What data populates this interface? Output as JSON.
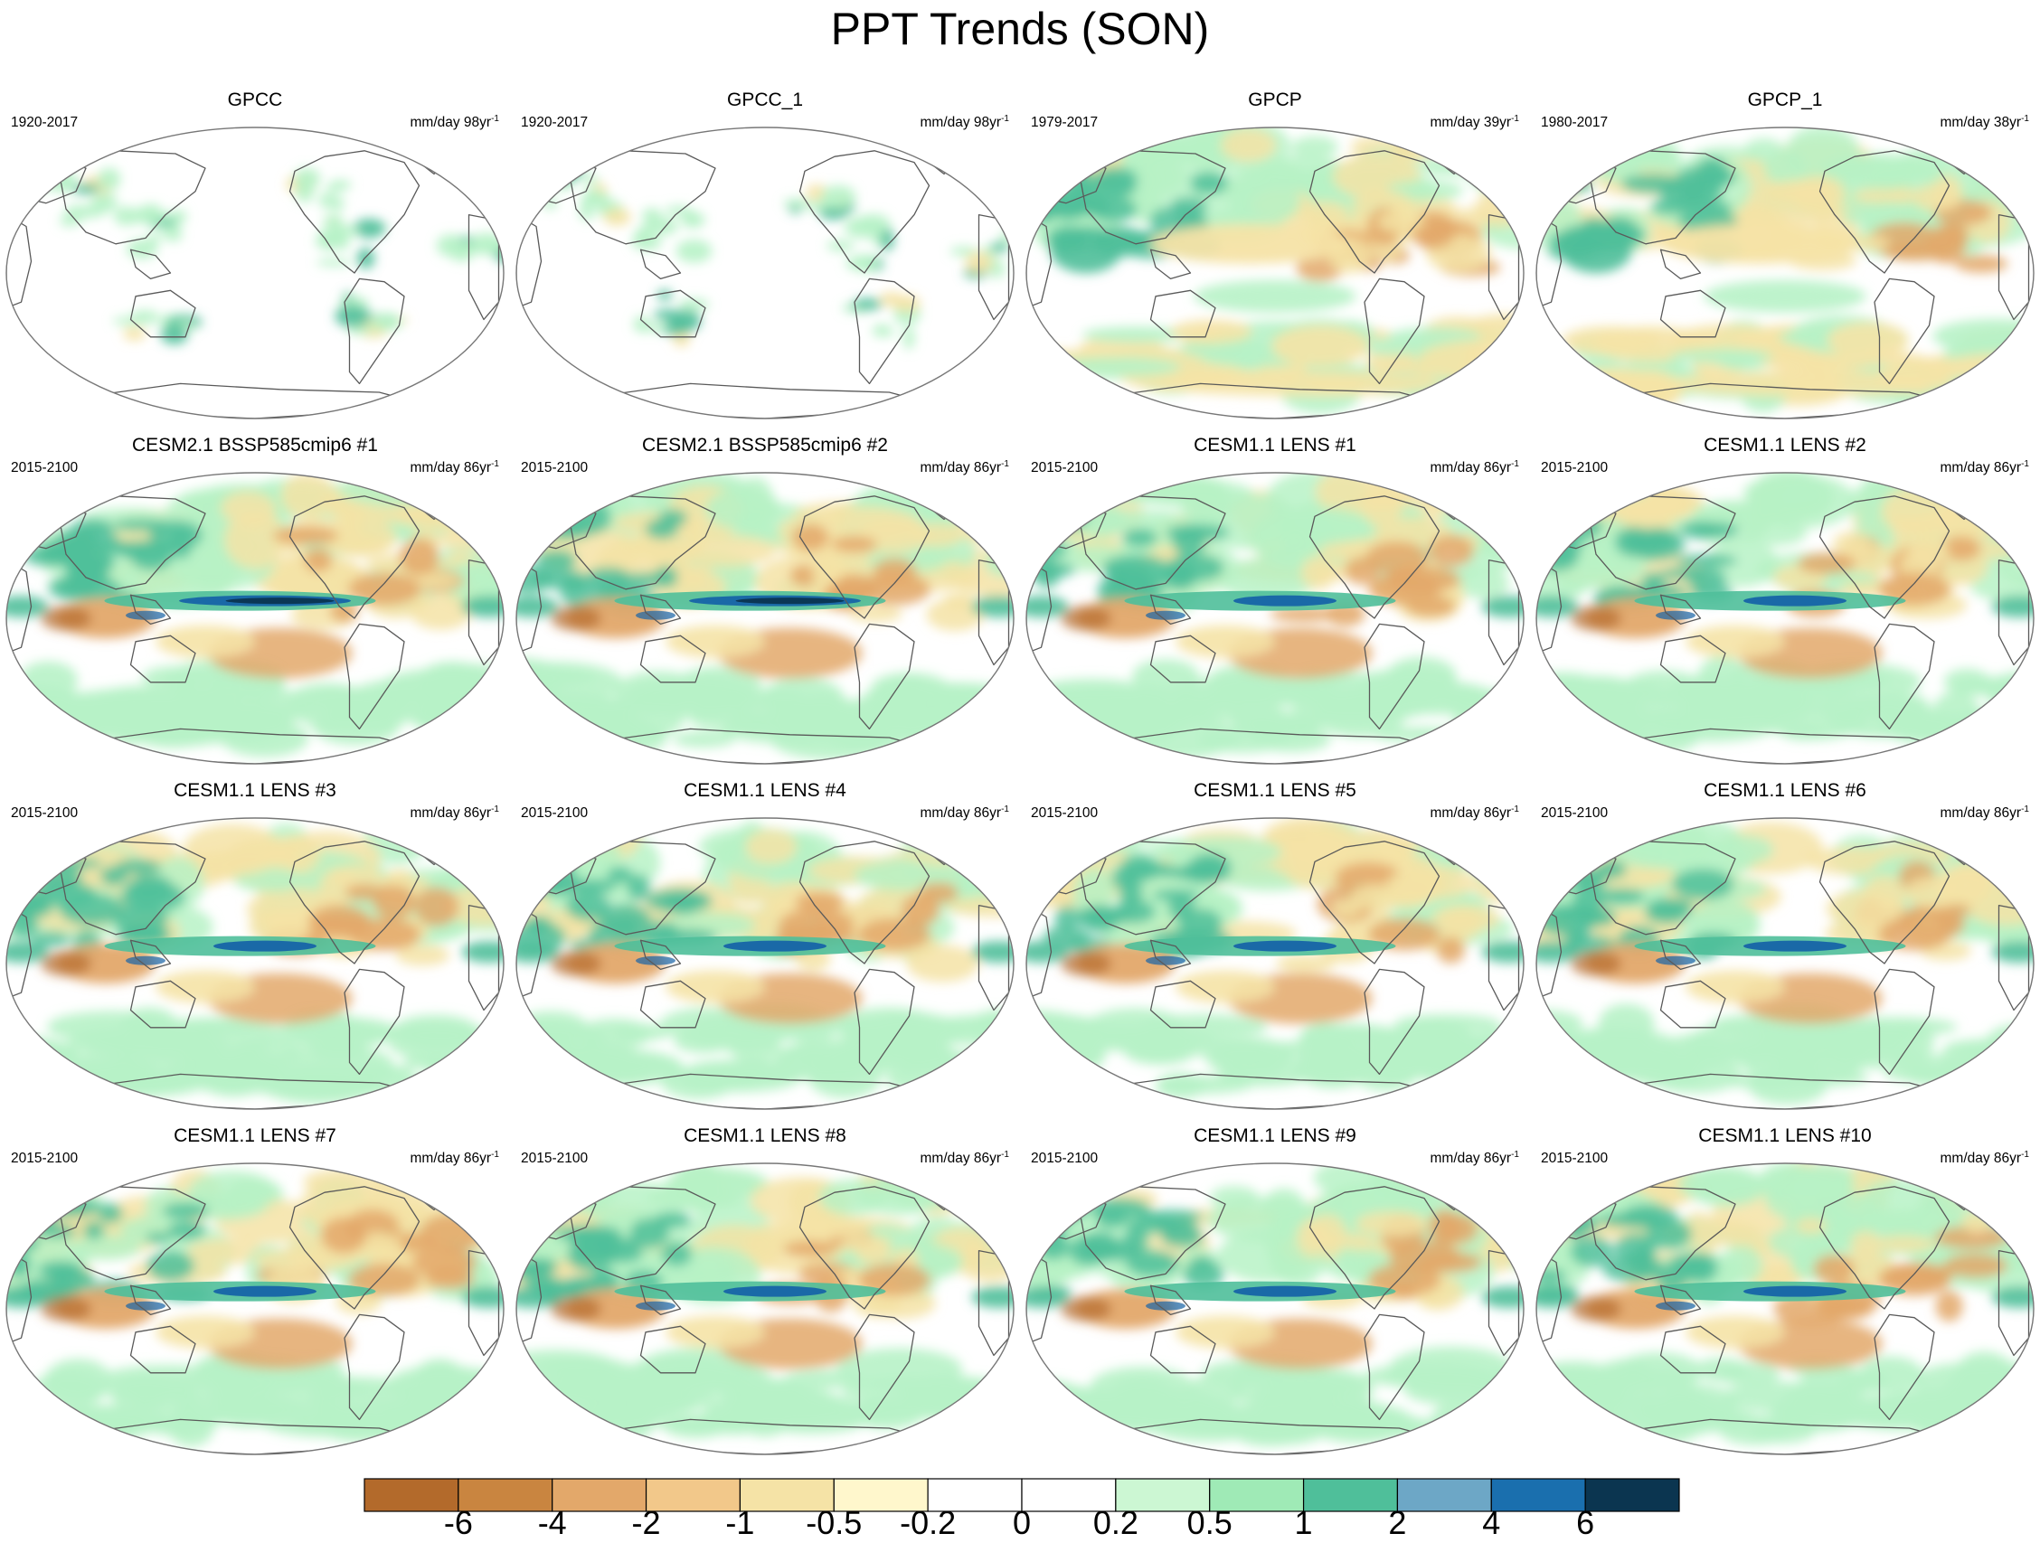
{
  "title": "PPT Trends (SON)",
  "colors": {
    "land_outline": "#5a5a5a",
    "ocean": "#ffffff",
    "dry_strong": "#b36a2b",
    "dry_mid": "#e3a86a",
    "dry_weak": "#f5e3a6",
    "wet_weak": "#b7f2c6",
    "wet_mid": "#4fbf9a",
    "wet_strong": "#1764a8",
    "wet_extreme": "#0b3550"
  },
  "panels": [
    {
      "title": "GPCC",
      "years": "1920-2017",
      "units": "mm/day 98yr",
      "exponent": "-1"
    },
    {
      "title": "GPCC_1",
      "years": "1920-2017",
      "units": "mm/day 98yr",
      "exponent": "-1"
    },
    {
      "title": "GPCP",
      "years": "1979-2017",
      "units": "mm/day 39yr",
      "exponent": "-1"
    },
    {
      "title": "GPCP_1",
      "years": "1980-2017",
      "units": "mm/day 38yr",
      "exponent": "-1"
    },
    {
      "title": "CESM2.1 BSSP585cmip6 #1",
      "years": "2015-2100",
      "units": "mm/day 86yr",
      "exponent": "-1"
    },
    {
      "title": "CESM2.1 BSSP585cmip6 #2",
      "years": "2015-2100",
      "units": "mm/day 86yr",
      "exponent": "-1"
    },
    {
      "title": "CESM1.1 LENS #1",
      "years": "2015-2100",
      "units": "mm/day 86yr",
      "exponent": "-1"
    },
    {
      "title": "CESM1.1 LENS #2",
      "years": "2015-2100",
      "units": "mm/day 86yr",
      "exponent": "-1"
    },
    {
      "title": "CESM1.1 LENS #3",
      "years": "2015-2100",
      "units": "mm/day 86yr",
      "exponent": "-1"
    },
    {
      "title": "CESM1.1 LENS #4",
      "years": "2015-2100",
      "units": "mm/day 86yr",
      "exponent": "-1"
    },
    {
      "title": "CESM1.1 LENS #5",
      "years": "2015-2100",
      "units": "mm/day 86yr",
      "exponent": "-1"
    },
    {
      "title": "CESM1.1 LENS #6",
      "years": "2015-2100",
      "units": "mm/day 86yr",
      "exponent": "-1"
    },
    {
      "title": "CESM1.1 LENS #7",
      "years": "2015-2100",
      "units": "mm/day 86yr",
      "exponent": "-1"
    },
    {
      "title": "CESM1.1 LENS #8",
      "years": "2015-2100",
      "units": "mm/day 86yr",
      "exponent": "-1"
    },
    {
      "title": "CESM1.1 LENS #9",
      "years": "2015-2100",
      "units": "mm/day 86yr",
      "exponent": "-1"
    },
    {
      "title": "CESM1.1 LENS #10",
      "years": "2015-2100",
      "units": "mm/day 86yr",
      "exponent": "-1"
    }
  ],
  "colorbar": {
    "colors": [
      "#b36a2b",
      "#c98540",
      "#e3a86a",
      "#f2c88a",
      "#f5e3a6",
      "#fff7cc",
      "#ffffff",
      "#ffffff",
      "#ccf7d3",
      "#9feab6",
      "#4fbf9a",
      "#6da7c6",
      "#1a6fae",
      "#0b3550"
    ],
    "labels": [
      "-6",
      "-4",
      "-2",
      "-1",
      "-0.5",
      "-0.2",
      "0",
      "0.2",
      "0.5",
      "1",
      "2",
      "4",
      "6"
    ]
  }
}
